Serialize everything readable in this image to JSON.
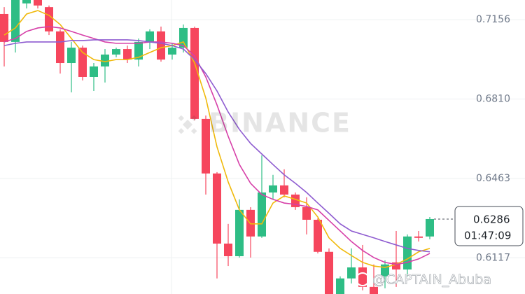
{
  "chart_data": {
    "type": "candlestick",
    "open": [
      0.7181,
      0.7059,
      0.7227,
      0.7242,
      0.7211,
      0.7105,
      0.6967,
      0.7034,
      0.6906,
      0.6952,
      0.7004,
      0.7028,
      0.6982,
      0.7059,
      0.7105,
      0.7004,
      0.7034,
      0.712,
      0.6723,
      0.6485,
      0.6179,
      0.6124,
      0.6326,
      0.621,
      0.6402,
      0.6433,
      0.6393,
      0.6338,
      0.6283,
      0.6143,
      0.5959,
      0.6027,
      0.6075,
      0.599,
      0.6036,
      0.6097,
      0.6066,
      0.621,
      0.621
    ],
    "high": [
      0.7211,
      0.7242,
      0.7242,
      0.7242,
      0.7218,
      0.7114,
      0.7059,
      0.7043,
      0.6967,
      0.7028,
      0.7034,
      0.7043,
      0.7074,
      0.7114,
      0.7126,
      0.7053,
      0.7135,
      0.7126,
      0.6738,
      0.6491,
      0.6265,
      0.6372,
      0.6338,
      0.6564,
      0.6479,
      0.6503,
      0.6402,
      0.6381,
      0.6289,
      0.6158,
      0.6036,
      0.6158,
      0.6173,
      0.6088,
      0.6106,
      0.6234,
      0.6219,
      0.6234,
      0.6295
    ],
    "low": [
      0.6952,
      0.7013,
      0.7205,
      0.7205,
      0.7089,
      0.6921,
      0.6839,
      0.6891,
      0.6845,
      0.6882,
      0.6992,
      0.6967,
      0.6952,
      0.7028,
      0.6973,
      0.6982,
      0.7013,
      0.6717,
      0.6393,
      0.6027,
      0.6081,
      0.6118,
      0.6118,
      0.6204,
      0.6372,
      0.6381,
      0.6326,
      0.6219,
      0.6136,
      0.5959,
      0.5959,
      0.6005,
      0.5975,
      0.5959,
      0.5984,
      0.599,
      0.6036,
      0.6188,
      0.6198
    ],
    "close": [
      0.7059,
      0.7242,
      0.7242,
      0.7218,
      0.7105,
      0.6967,
      0.7034,
      0.6906,
      0.6952,
      0.7004,
      0.7028,
      0.6982,
      0.7059,
      0.7105,
      0.6982,
      0.7034,
      0.712,
      0.6723,
      0.6485,
      0.6179,
      0.6124,
      0.6326,
      0.621,
      0.6402,
      0.6433,
      0.6393,
      0.6338,
      0.6283,
      0.6143,
      0.5959,
      0.6027,
      0.6075,
      0.599,
      0.5959,
      0.6088,
      0.6066,
      0.621,
      0.6204,
      0.6286
    ],
    "up_color": "#2ebd85",
    "down_color": "#f6465d",
    "series": [
      {
        "color": "#f0b90b",
        "values": [
          0.7089,
          0.712,
          0.7181,
          0.7196,
          0.7175,
          0.7135,
          0.7074,
          0.7013,
          0.6982,
          0.6973,
          0.6982,
          0.6982,
          0.6992,
          0.7013,
          0.7034,
          0.7043,
          0.7059,
          0.6967,
          0.6814,
          0.6601,
          0.6448,
          0.6326,
          0.6265,
          0.6265,
          0.6356,
          0.6387,
          0.6372,
          0.6356,
          0.6295,
          0.6204,
          0.6158,
          0.6127,
          0.6097,
          0.6081,
          0.6075,
          0.6088,
          0.6112,
          0.6143,
          0.6158
        ]
      },
      {
        "color": "#d63fa8",
        "values": [
          0.7059,
          0.7074,
          0.7105,
          0.712,
          0.7126,
          0.712,
          0.7105,
          0.7089,
          0.7074,
          0.7059,
          0.7053,
          0.7053,
          0.7053,
          0.7059,
          0.7059,
          0.7053,
          0.7043,
          0.6998,
          0.6906,
          0.6784,
          0.6647,
          0.6524,
          0.6442,
          0.6393,
          0.6372,
          0.6356,
          0.635,
          0.6341,
          0.6326,
          0.628,
          0.6234,
          0.6188,
          0.6149,
          0.6118,
          0.6097,
          0.6088,
          0.6097,
          0.6112,
          0.6136
        ]
      },
      {
        "color": "#8e5cd0",
        "values": [
          0.7043,
          0.7053,
          0.7059,
          0.7059,
          0.7059,
          0.7059,
          0.7065,
          0.7065,
          0.7068,
          0.7068,
          0.7068,
          0.7068,
          0.7065,
          0.7059,
          0.7053,
          0.7043,
          0.7028,
          0.6982,
          0.6921,
          0.6845,
          0.6753,
          0.6677,
          0.6616,
          0.657,
          0.6524,
          0.6479,
          0.6442,
          0.6402,
          0.6356,
          0.6311,
          0.6265,
          0.6234,
          0.6219,
          0.6204,
          0.6188,
          0.6173,
          0.6158,
          0.6149,
          0.6143
        ]
      }
    ],
    "ylim": [
      0.5959,
      0.7242
    ],
    "yticks": [
      0.7156,
      {
        "value": 0.681,
        "label": "0.6810"
      },
      0.6463,
      0.6117
    ],
    "grid": true,
    "last_price": 0.6286,
    "countdown": "01:47:09",
    "watermark": "BINANCE",
    "credit": "@CAPTAIN_Abuba"
  }
}
